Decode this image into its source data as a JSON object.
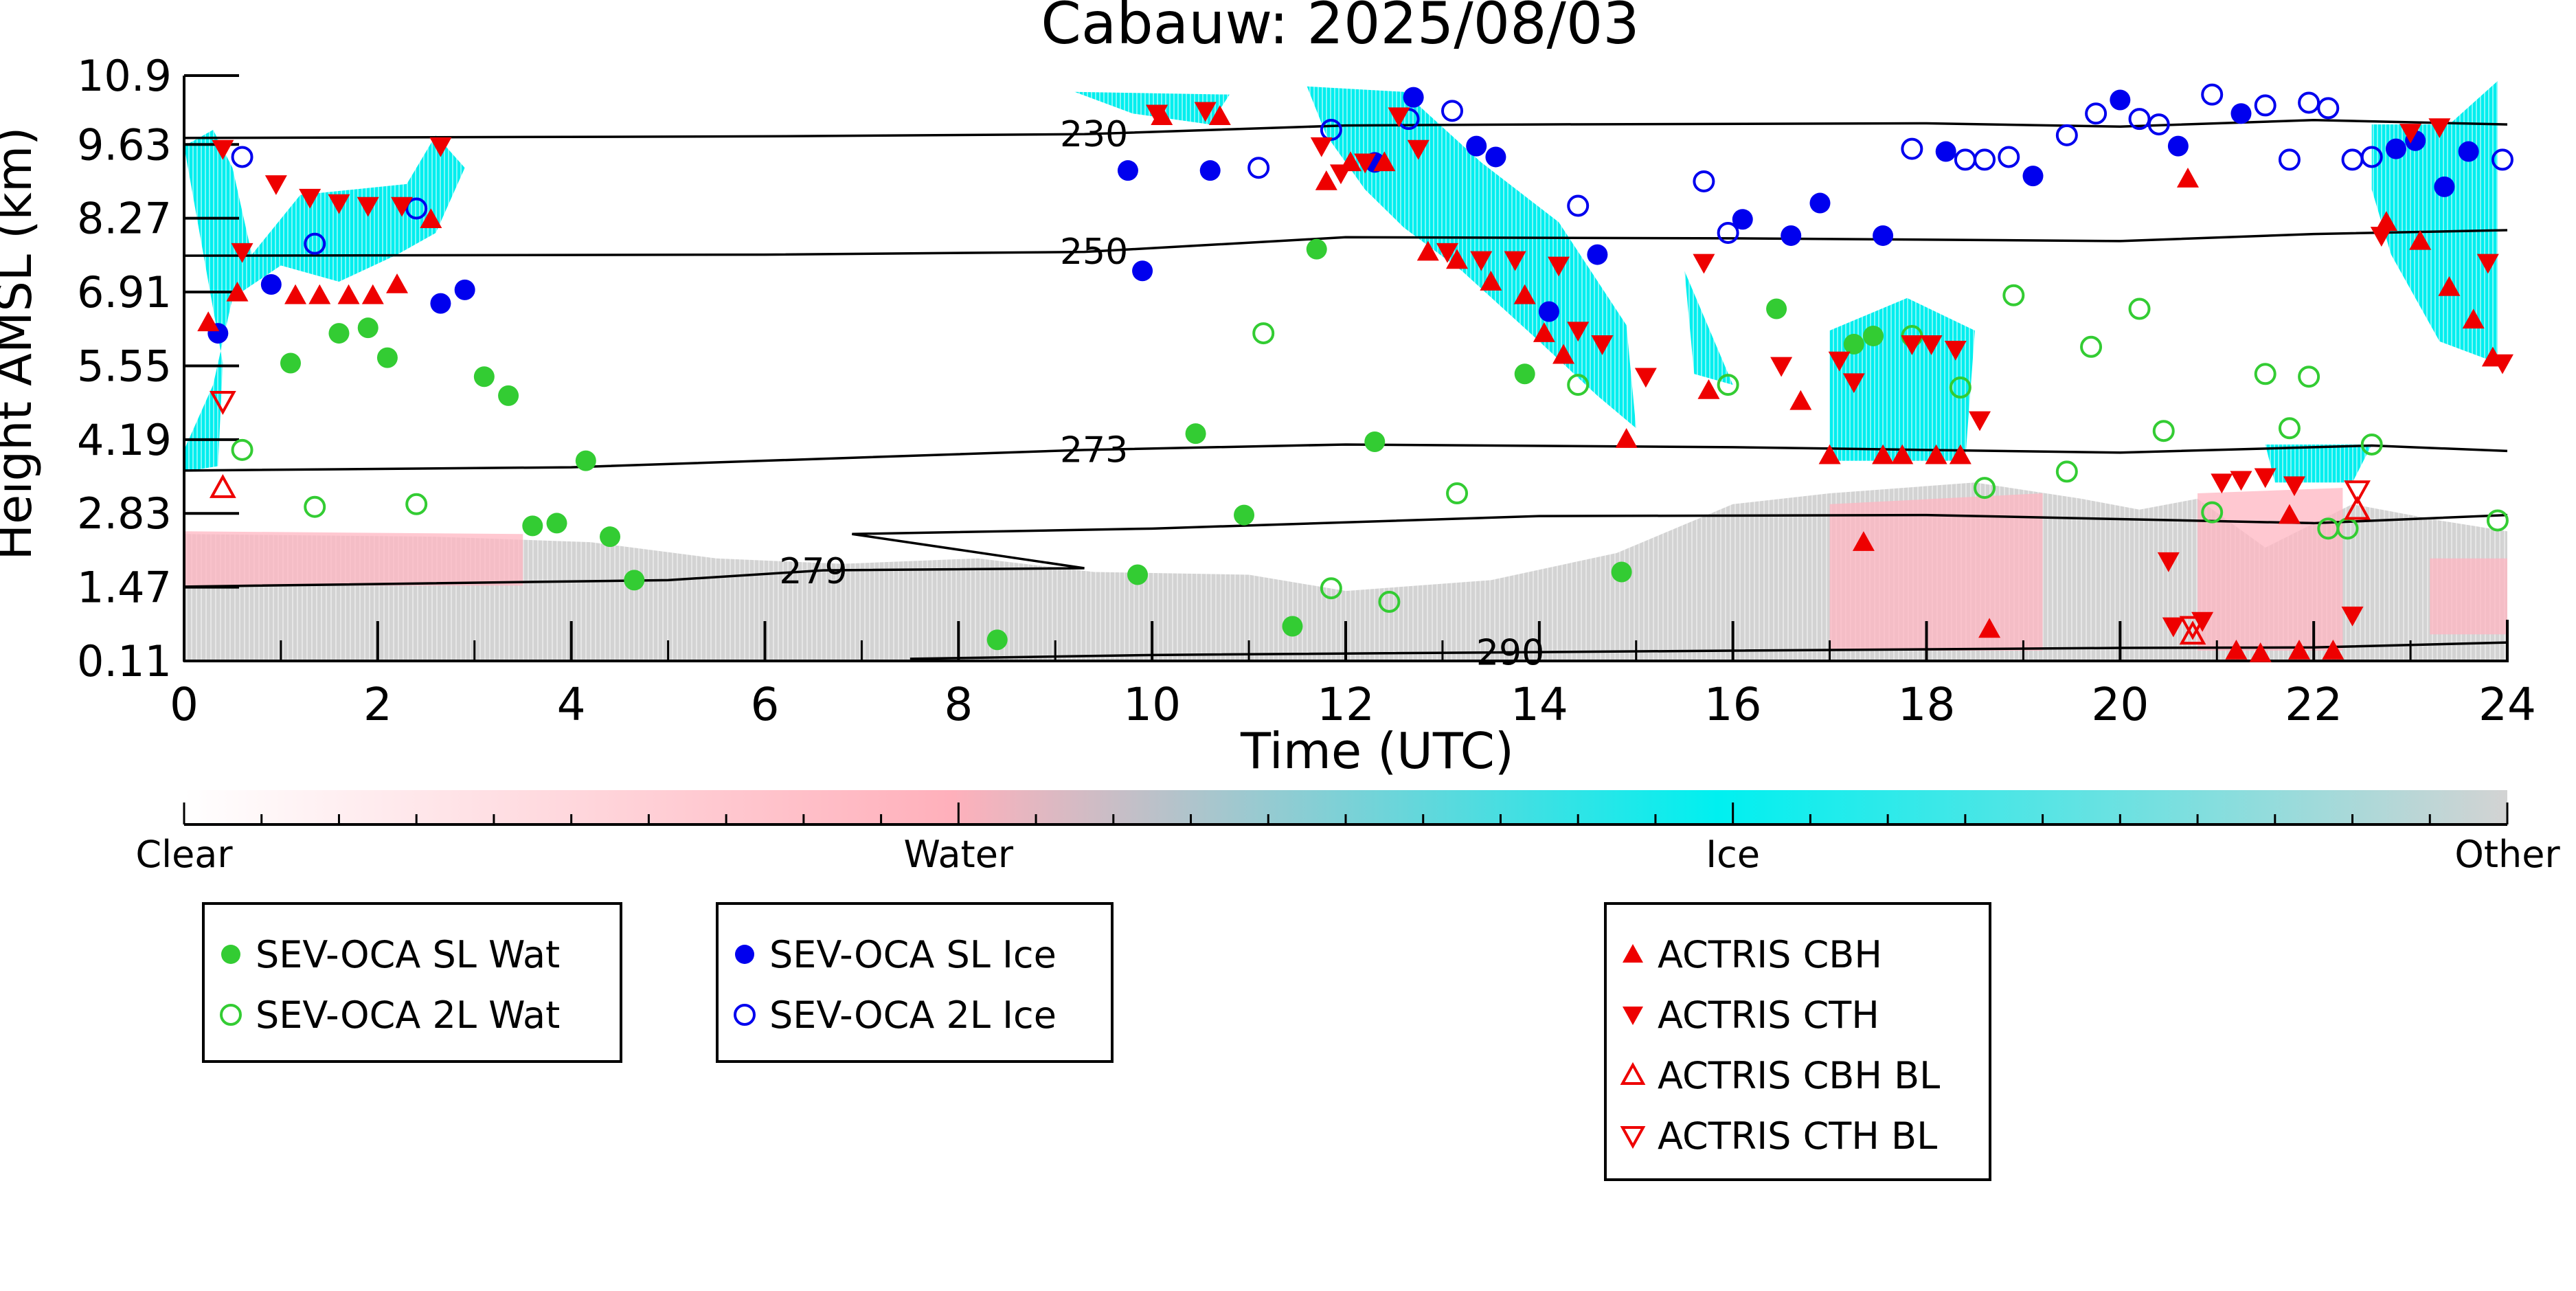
{
  "chart_data": {
    "type": "scatter",
    "title": "Cabauw: 2025/08/03",
    "xlabel": "Time (UTC)",
    "ylabel": "Height AMSL (km)",
    "xlim": [
      0,
      24
    ],
    "ylim": [
      0.11,
      10.9
    ],
    "x_ticks": [
      "0",
      "2",
      "4",
      "6",
      "8",
      "10",
      "12",
      "14",
      "16",
      "18",
      "20",
      "22",
      "24"
    ],
    "y_ticks": [
      "10.9",
      "9.63",
      "8.27",
      "6.91",
      "5.55",
      "4.19",
      "2.83",
      "1.47",
      "0.11"
    ],
    "colors": {
      "sl_wat": "#33cc33",
      "sl_ice": "#0000ee",
      "actris": "#ee0000",
      "ice_cloud": "#00eeee",
      "water_cloud": "#ffb6c1",
      "other": "#d3d3d3"
    },
    "colorbar": {
      "labels": [
        "Clear",
        "Water",
        "Ice",
        "Other"
      ]
    },
    "legends": [
      {
        "name": "legend-sevoca-water",
        "entries": [
          {
            "label": "SEV-OCA SL Wat",
            "marker": "circle-filled",
            "color": "#33cc33"
          },
          {
            "label": "SEV-OCA 2L Wat",
            "marker": "circle-open",
            "color": "#33cc33"
          }
        ]
      },
      {
        "name": "legend-sevoca-ice",
        "entries": [
          {
            "label": "SEV-OCA SL Ice",
            "marker": "circle-filled",
            "color": "#0000ee"
          },
          {
            "label": "SEV-OCA 2L Ice",
            "marker": "circle-open",
            "color": "#0000ee"
          }
        ]
      },
      {
        "name": "legend-actris",
        "entries": [
          {
            "label": "ACTRIS CBH",
            "marker": "triangle-up-filled",
            "color": "#ee0000"
          },
          {
            "label": "ACTRIS CTH",
            "marker": "triangle-down-filled",
            "color": "#ee0000"
          },
          {
            "label": "ACTRIS CBH BL",
            "marker": "triangle-up-open",
            "color": "#ee0000"
          },
          {
            "label": "ACTRIS CTH BL",
            "marker": "triangle-down-open",
            "color": "#ee0000"
          }
        ]
      }
    ],
    "isotherms": [
      {
        "label": "230",
        "label_x": 9.4,
        "points": [
          [
            0,
            9.75
          ],
          [
            6,
            9.78
          ],
          [
            9.3,
            9.82
          ],
          [
            12,
            9.98
          ],
          [
            14,
            10.0
          ],
          [
            18,
            10.02
          ],
          [
            20,
            9.96
          ],
          [
            22,
            10.08
          ],
          [
            24,
            10.0
          ]
        ]
      },
      {
        "label": "250",
        "label_x": 9.4,
        "points": [
          [
            0,
            7.58
          ],
          [
            6,
            7.6
          ],
          [
            9.3,
            7.65
          ],
          [
            12,
            7.92
          ],
          [
            16,
            7.9
          ],
          [
            20,
            7.85
          ],
          [
            22,
            7.98
          ],
          [
            24,
            8.05
          ]
        ]
      },
      {
        "label": "273",
        "label_x": 9.4,
        "points": [
          [
            0,
            3.62
          ],
          [
            4,
            3.68
          ],
          [
            9.3,
            4.0
          ],
          [
            12,
            4.1
          ],
          [
            16,
            4.05
          ],
          [
            20,
            3.95
          ],
          [
            22.6,
            4.08
          ],
          [
            24,
            3.98
          ]
        ]
      },
      {
        "label": "279",
        "label_x": 6.5,
        "points": [
          [
            0,
            1.48
          ],
          [
            5,
            1.6
          ],
          [
            6.6,
            1.78
          ],
          [
            9.3,
            1.82
          ],
          [
            6.9,
            2.45
          ],
          [
            10,
            2.55
          ],
          [
            14,
            2.78
          ],
          [
            18,
            2.8
          ],
          [
            22,
            2.65
          ],
          [
            24,
            2.8
          ]
        ]
      },
      {
        "label": "290",
        "label_x": 13.7,
        "points": [
          [
            7.5,
            0.15
          ],
          [
            10,
            0.22
          ],
          [
            16,
            0.3
          ],
          [
            20,
            0.35
          ],
          [
            22,
            0.36
          ],
          [
            24,
            0.45
          ]
        ]
      }
    ],
    "series": [
      {
        "name": "SEV-OCA SL Wat",
        "marker": "circle-filled",
        "color": "#33cc33",
        "points": [
          [
            1.1,
            5.6
          ],
          [
            1.6,
            6.15
          ],
          [
            1.9,
            6.25
          ],
          [
            2.1,
            5.7
          ],
          [
            3.1,
            5.35
          ],
          [
            3.35,
            5.0
          ],
          [
            3.6,
            2.6
          ],
          [
            3.85,
            2.65
          ],
          [
            4.15,
            3.8
          ],
          [
            4.4,
            2.4
          ],
          [
            4.65,
            1.6
          ],
          [
            8.4,
            0.5
          ],
          [
            9.85,
            1.7
          ],
          [
            10.45,
            4.3
          ],
          [
            10.95,
            2.8
          ],
          [
            11.45,
            0.75
          ],
          [
            11.7,
            7.7
          ],
          [
            12.3,
            4.15
          ],
          [
            13.85,
            5.4
          ],
          [
            14.85,
            1.75
          ],
          [
            16.45,
            6.6
          ],
          [
            17.25,
            5.95
          ],
          [
            17.45,
            6.1
          ]
        ]
      },
      {
        "name": "SEV-OCA 2L Wat",
        "marker": "circle-open",
        "color": "#33cc33",
        "points": [
          [
            0.6,
            4.0
          ],
          [
            1.35,
            2.95
          ],
          [
            2.4,
            3.0
          ],
          [
            11.15,
            6.15
          ],
          [
            11.85,
            1.45
          ],
          [
            12.45,
            1.2
          ],
          [
            13.15,
            3.2
          ],
          [
            14.4,
            5.2
          ],
          [
            15.95,
            5.2
          ],
          [
            17.85,
            6.1
          ],
          [
            18.35,
            5.15
          ],
          [
            18.6,
            3.3
          ],
          [
            18.9,
            6.85
          ],
          [
            19.45,
            3.6
          ],
          [
            19.7,
            5.9
          ],
          [
            20.2,
            6.6
          ],
          [
            20.45,
            4.35
          ],
          [
            20.95,
            2.85
          ],
          [
            21.5,
            5.4
          ],
          [
            21.75,
            4.4
          ],
          [
            21.95,
            5.35
          ],
          [
            22.15,
            2.55
          ],
          [
            22.35,
            2.55
          ],
          [
            22.6,
            4.1
          ],
          [
            23.9,
            2.7
          ]
        ]
      },
      {
        "name": "SEV-OCA SL Ice",
        "marker": "circle-filled",
        "color": "#0000ee",
        "points": [
          [
            0.35,
            6.15
          ],
          [
            0.9,
            7.05
          ],
          [
            2.65,
            6.7
          ],
          [
            2.9,
            6.95
          ],
          [
            9.75,
            9.15
          ],
          [
            9.9,
            7.3
          ],
          [
            10.6,
            9.15
          ],
          [
            12.3,
            9.3
          ],
          [
            12.7,
            10.5
          ],
          [
            13.35,
            9.6
          ],
          [
            13.55,
            9.4
          ],
          [
            14.1,
            6.55
          ],
          [
            14.6,
            7.6
          ],
          [
            16.1,
            8.25
          ],
          [
            16.6,
            7.95
          ],
          [
            16.9,
            8.55
          ],
          [
            17.55,
            7.95
          ],
          [
            18.2,
            9.5
          ],
          [
            19.1,
            9.05
          ],
          [
            20.0,
            10.45
          ],
          [
            20.6,
            9.6
          ],
          [
            21.25,
            10.2
          ],
          [
            22.85,
            9.55
          ],
          [
            23.05,
            9.7
          ],
          [
            23.35,
            8.85
          ],
          [
            23.6,
            9.5
          ]
        ]
      },
      {
        "name": "SEV-OCA 2L Ice",
        "marker": "circle-open",
        "color": "#0000ee",
        "points": [
          [
            0.6,
            9.4
          ],
          [
            1.35,
            7.8
          ],
          [
            2.4,
            8.45
          ],
          [
            11.1,
            9.2
          ],
          [
            11.85,
            9.9
          ],
          [
            12.65,
            10.1
          ],
          [
            13.1,
            10.25
          ],
          [
            14.4,
            8.5
          ],
          [
            15.7,
            8.95
          ],
          [
            15.95,
            8.0
          ],
          [
            17.85,
            9.55
          ],
          [
            18.4,
            9.35
          ],
          [
            18.6,
            9.35
          ],
          [
            18.85,
            9.4
          ],
          [
            19.45,
            9.8
          ],
          [
            19.75,
            10.2
          ],
          [
            20.2,
            10.1
          ],
          [
            20.4,
            10.0
          ],
          [
            20.95,
            10.55
          ],
          [
            21.5,
            10.35
          ],
          [
            21.75,
            9.35
          ],
          [
            21.95,
            10.4
          ],
          [
            22.15,
            10.3
          ],
          [
            22.4,
            9.35
          ],
          [
            22.6,
            9.4
          ],
          [
            23.95,
            9.35
          ]
        ]
      },
      {
        "name": "ACTRIS CBH",
        "marker": "triangle-up-filled",
        "color": "#ee0000",
        "points": [
          [
            0.25,
            6.35
          ],
          [
            0.55,
            6.9
          ],
          [
            1.15,
            6.85
          ],
          [
            1.4,
            6.85
          ],
          [
            1.7,
            6.85
          ],
          [
            1.95,
            6.85
          ],
          [
            2.2,
            7.05
          ],
          [
            2.55,
            8.25
          ],
          [
            10.1,
            10.15
          ],
          [
            10.7,
            10.15
          ],
          [
            11.8,
            8.95
          ],
          [
            12.05,
            9.3
          ],
          [
            12.4,
            9.3
          ],
          [
            12.85,
            7.65
          ],
          [
            13.15,
            7.5
          ],
          [
            13.5,
            7.1
          ],
          [
            13.85,
            6.85
          ],
          [
            14.05,
            6.15
          ],
          [
            14.25,
            5.75
          ],
          [
            14.9,
            4.2
          ],
          [
            15.75,
            5.1
          ],
          [
            16.7,
            4.9
          ],
          [
            17.0,
            3.9
          ],
          [
            17.35,
            2.3
          ],
          [
            17.55,
            3.9
          ],
          [
            17.75,
            3.9
          ],
          [
            18.1,
            3.9
          ],
          [
            18.35,
            3.9
          ],
          [
            18.65,
            0.7
          ],
          [
            20.7,
            9.0
          ],
          [
            21.2,
            0.3
          ],
          [
            21.45,
            0.25
          ],
          [
            21.75,
            2.8
          ],
          [
            21.85,
            0.3
          ],
          [
            22.2,
            0.3
          ],
          [
            22.75,
            8.2
          ],
          [
            23.1,
            7.85
          ],
          [
            23.4,
            7.0
          ],
          [
            23.65,
            6.4
          ],
          [
            23.85,
            5.7
          ]
        ]
      },
      {
        "name": "ACTRIS CTH",
        "marker": "triangle-down-filled",
        "color": "#ee0000",
        "points": [
          [
            0.4,
            9.55
          ],
          [
            0.6,
            7.65
          ],
          [
            0.95,
            8.9
          ],
          [
            1.3,
            8.65
          ],
          [
            1.6,
            8.55
          ],
          [
            1.9,
            8.5
          ],
          [
            2.25,
            8.5
          ],
          [
            2.65,
            9.6
          ],
          [
            10.05,
            10.2
          ],
          [
            10.55,
            10.25
          ],
          [
            11.75,
            9.6
          ],
          [
            11.95,
            9.1
          ],
          [
            12.2,
            9.3
          ],
          [
            12.55,
            10.15
          ],
          [
            12.75,
            9.55
          ],
          [
            13.05,
            7.65
          ],
          [
            13.4,
            7.5
          ],
          [
            13.75,
            7.5
          ],
          [
            14.2,
            7.4
          ],
          [
            14.4,
            6.2
          ],
          [
            14.65,
            5.95
          ],
          [
            15.1,
            5.35
          ],
          [
            15.7,
            7.45
          ],
          [
            16.5,
            5.55
          ],
          [
            17.1,
            5.65
          ],
          [
            17.25,
            5.25
          ],
          [
            17.85,
            5.95
          ],
          [
            18.05,
            5.95
          ],
          [
            18.3,
            5.85
          ],
          [
            18.55,
            4.55
          ],
          [
            20.5,
            1.95
          ],
          [
            20.55,
            0.75
          ],
          [
            20.85,
            0.85
          ],
          [
            21.05,
            3.4
          ],
          [
            21.25,
            3.45
          ],
          [
            21.5,
            3.5
          ],
          [
            21.8,
            3.35
          ],
          [
            22.4,
            0.95
          ],
          [
            22.7,
            7.95
          ],
          [
            23.0,
            9.85
          ],
          [
            23.3,
            9.95
          ],
          [
            23.8,
            7.45
          ],
          [
            23.95,
            5.6
          ]
        ]
      },
      {
        "name": "ACTRIS CBH BL",
        "marker": "triangle-up-open",
        "color": "#ee0000",
        "points": [
          [
            0.4,
            3.3
          ],
          [
            20.75,
            0.6
          ],
          [
            22.45,
            2.9
          ]
        ]
      },
      {
        "name": "ACTRIS CTH BL",
        "marker": "triangle-down-open",
        "color": "#ee0000",
        "points": [
          [
            0.4,
            4.9
          ],
          [
            20.75,
            0.75
          ],
          [
            22.45,
            3.25
          ]
        ]
      }
    ]
  }
}
